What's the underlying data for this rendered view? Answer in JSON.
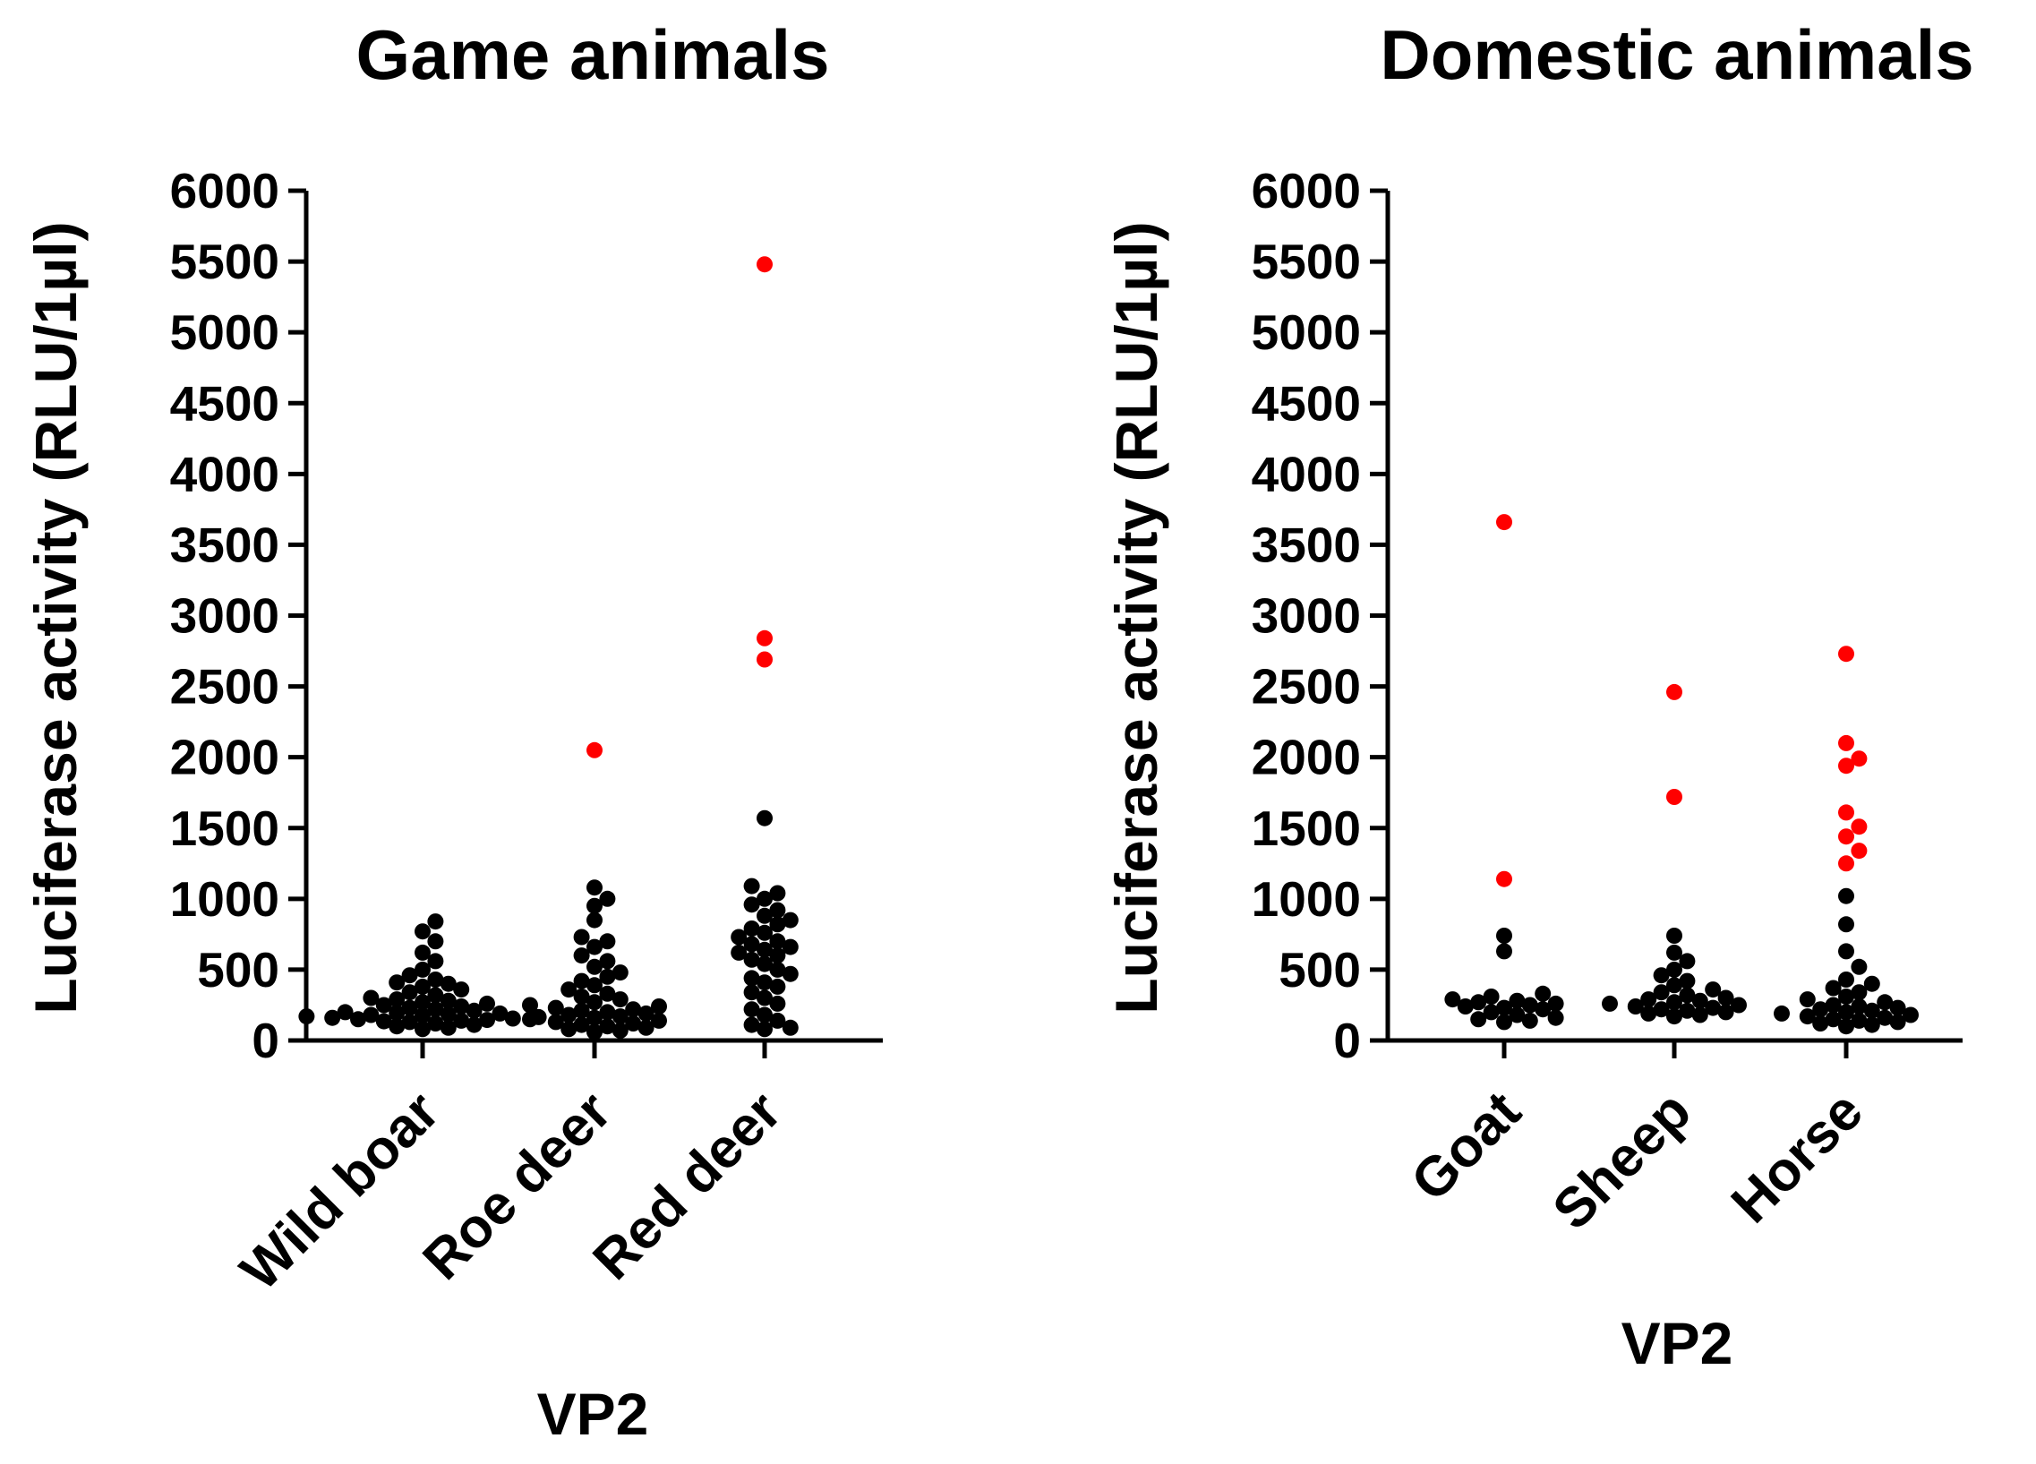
{
  "chart_data": [
    {
      "type": "scatter",
      "title": "Game animals",
      "xlabel": "VP2",
      "ylabel": "Luciferase activity (RLU/1µl)",
      "ylim": [
        0,
        6000
      ],
      "yticks": [
        0,
        500,
        1000,
        1500,
        2000,
        2500,
        3000,
        3500,
        4000,
        4500,
        5000,
        5500,
        6000
      ],
      "categories": [
        "Wild boar",
        "Roe deer",
        "Red deer"
      ],
      "colors": {
        "below_threshold": "#000000",
        "above_threshold": "#ff0000"
      },
      "series": [
        {
          "name": "Wild boar",
          "points": [
            {
              "y": 840,
              "color": "#000000"
            },
            {
              "y": 770,
              "color": "#000000"
            },
            {
              "y": 700,
              "color": "#000000"
            },
            {
              "y": 620,
              "color": "#000000"
            },
            {
              "y": 560,
              "color": "#000000"
            },
            {
              "y": 500,
              "color": "#000000"
            },
            {
              "y": 460,
              "color": "#000000"
            },
            {
              "y": 430,
              "color": "#000000"
            },
            {
              "y": 410,
              "color": "#000000"
            },
            {
              "y": 400,
              "color": "#000000"
            },
            {
              "y": 380,
              "color": "#000000"
            },
            {
              "y": 360,
              "color": "#000000"
            },
            {
              "y": 340,
              "color": "#000000"
            },
            {
              "y": 320,
              "color": "#000000"
            },
            {
              "y": 300,
              "color": "#000000"
            },
            {
              "y": 290,
              "color": "#000000"
            },
            {
              "y": 280,
              "color": "#000000"
            },
            {
              "y": 270,
              "color": "#000000"
            },
            {
              "y": 260,
              "color": "#000000"
            },
            {
              "y": 250,
              "color": "#000000"
            },
            {
              "y": 240,
              "color": "#000000"
            },
            {
              "y": 230,
              "color": "#000000"
            },
            {
              "y": 220,
              "color": "#000000"
            },
            {
              "y": 210,
              "color": "#000000"
            },
            {
              "y": 200,
              "color": "#000000"
            },
            {
              "y": 195,
              "color": "#000000"
            },
            {
              "y": 190,
              "color": "#000000"
            },
            {
              "y": 185,
              "color": "#000000"
            },
            {
              "y": 180,
              "color": "#000000"
            },
            {
              "y": 175,
              "color": "#000000"
            },
            {
              "y": 170,
              "color": "#000000"
            },
            {
              "y": 165,
              "color": "#000000"
            },
            {
              "y": 160,
              "color": "#000000"
            },
            {
              "y": 155,
              "color": "#000000"
            },
            {
              "y": 150,
              "color": "#000000"
            },
            {
              "y": 145,
              "color": "#000000"
            },
            {
              "y": 140,
              "color": "#000000"
            },
            {
              "y": 135,
              "color": "#000000"
            },
            {
              "y": 130,
              "color": "#000000"
            },
            {
              "y": 120,
              "color": "#000000"
            },
            {
              "y": 110,
              "color": "#000000"
            },
            {
              "y": 100,
              "color": "#000000"
            },
            {
              "y": 90,
              "color": "#000000"
            },
            {
              "y": 80,
              "color": "#000000"
            }
          ]
        },
        {
          "name": "Roe deer",
          "points": [
            {
              "y": 2050,
              "color": "#ff0000"
            },
            {
              "y": 1080,
              "color": "#000000"
            },
            {
              "y": 1000,
              "color": "#000000"
            },
            {
              "y": 950,
              "color": "#000000"
            },
            {
              "y": 850,
              "color": "#000000"
            },
            {
              "y": 730,
              "color": "#000000"
            },
            {
              "y": 700,
              "color": "#000000"
            },
            {
              "y": 660,
              "color": "#000000"
            },
            {
              "y": 600,
              "color": "#000000"
            },
            {
              "y": 560,
              "color": "#000000"
            },
            {
              "y": 520,
              "color": "#000000"
            },
            {
              "y": 480,
              "color": "#000000"
            },
            {
              "y": 450,
              "color": "#000000"
            },
            {
              "y": 420,
              "color": "#000000"
            },
            {
              "y": 390,
              "color": "#000000"
            },
            {
              "y": 360,
              "color": "#000000"
            },
            {
              "y": 330,
              "color": "#000000"
            },
            {
              "y": 310,
              "color": "#000000"
            },
            {
              "y": 290,
              "color": "#000000"
            },
            {
              "y": 270,
              "color": "#000000"
            },
            {
              "y": 250,
              "color": "#000000"
            },
            {
              "y": 240,
              "color": "#000000"
            },
            {
              "y": 230,
              "color": "#000000"
            },
            {
              "y": 220,
              "color": "#000000"
            },
            {
              "y": 210,
              "color": "#000000"
            },
            {
              "y": 200,
              "color": "#000000"
            },
            {
              "y": 190,
              "color": "#000000"
            },
            {
              "y": 180,
              "color": "#000000"
            },
            {
              "y": 170,
              "color": "#000000"
            },
            {
              "y": 160,
              "color": "#000000"
            },
            {
              "y": 150,
              "color": "#000000"
            },
            {
              "y": 140,
              "color": "#000000"
            },
            {
              "y": 130,
              "color": "#000000"
            },
            {
              "y": 120,
              "color": "#000000"
            },
            {
              "y": 110,
              "color": "#000000"
            },
            {
              "y": 100,
              "color": "#000000"
            },
            {
              "y": 90,
              "color": "#000000"
            },
            {
              "y": 80,
              "color": "#000000"
            },
            {
              "y": 70,
              "color": "#000000"
            },
            {
              "y": 60,
              "color": "#000000"
            }
          ]
        },
        {
          "name": "Red deer",
          "points": [
            {
              "y": 5480,
              "color": "#ff0000"
            },
            {
              "y": 2840,
              "color": "#ff0000"
            },
            {
              "y": 2690,
              "color": "#ff0000"
            },
            {
              "y": 1570,
              "color": "#000000"
            },
            {
              "y": 1090,
              "color": "#000000"
            },
            {
              "y": 1040,
              "color": "#000000"
            },
            {
              "y": 1000,
              "color": "#000000"
            },
            {
              "y": 960,
              "color": "#000000"
            },
            {
              "y": 920,
              "color": "#000000"
            },
            {
              "y": 880,
              "color": "#000000"
            },
            {
              "y": 850,
              "color": "#000000"
            },
            {
              "y": 820,
              "color": "#000000"
            },
            {
              "y": 790,
              "color": "#000000"
            },
            {
              "y": 760,
              "color": "#000000"
            },
            {
              "y": 730,
              "color": "#000000"
            },
            {
              "y": 700,
              "color": "#000000"
            },
            {
              "y": 680,
              "color": "#000000"
            },
            {
              "y": 660,
              "color": "#000000"
            },
            {
              "y": 640,
              "color": "#000000"
            },
            {
              "y": 620,
              "color": "#000000"
            },
            {
              "y": 600,
              "color": "#000000"
            },
            {
              "y": 570,
              "color": "#000000"
            },
            {
              "y": 540,
              "color": "#000000"
            },
            {
              "y": 500,
              "color": "#000000"
            },
            {
              "y": 470,
              "color": "#000000"
            },
            {
              "y": 440,
              "color": "#000000"
            },
            {
              "y": 410,
              "color": "#000000"
            },
            {
              "y": 380,
              "color": "#000000"
            },
            {
              "y": 340,
              "color": "#000000"
            },
            {
              "y": 300,
              "color": "#000000"
            },
            {
              "y": 260,
              "color": "#000000"
            },
            {
              "y": 220,
              "color": "#000000"
            },
            {
              "y": 180,
              "color": "#000000"
            },
            {
              "y": 140,
              "color": "#000000"
            },
            {
              "y": 110,
              "color": "#000000"
            },
            {
              "y": 90,
              "color": "#000000"
            },
            {
              "y": 80,
              "color": "#000000"
            }
          ]
        }
      ]
    },
    {
      "type": "scatter",
      "title": "Domestic animals",
      "xlabel": "VP2",
      "ylabel": "Luciferase activity (RLU/1µl)",
      "ylim": [
        0,
        6000
      ],
      "yticks": [
        0,
        500,
        1000,
        1500,
        2000,
        2500,
        3000,
        3500,
        4000,
        4500,
        5000,
        5500,
        6000
      ],
      "categories": [
        "Goat",
        "Sheep",
        "Horse"
      ],
      "colors": {
        "below_threshold": "#000000",
        "above_threshold": "#ff0000"
      },
      "series": [
        {
          "name": "Goat",
          "points": [
            {
              "y": 3660,
              "color": "#ff0000"
            },
            {
              "y": 1140,
              "color": "#ff0000"
            },
            {
              "y": 740,
              "color": "#000000"
            },
            {
              "y": 630,
              "color": "#000000"
            },
            {
              "y": 330,
              "color": "#000000"
            },
            {
              "y": 310,
              "color": "#000000"
            },
            {
              "y": 290,
              "color": "#000000"
            },
            {
              "y": 280,
              "color": "#000000"
            },
            {
              "y": 270,
              "color": "#000000"
            },
            {
              "y": 260,
              "color": "#000000"
            },
            {
              "y": 250,
              "color": "#000000"
            },
            {
              "y": 240,
              "color": "#000000"
            },
            {
              "y": 230,
              "color": "#000000"
            },
            {
              "y": 220,
              "color": "#000000"
            },
            {
              "y": 200,
              "color": "#000000"
            },
            {
              "y": 180,
              "color": "#000000"
            },
            {
              "y": 160,
              "color": "#000000"
            },
            {
              "y": 150,
              "color": "#000000"
            },
            {
              "y": 140,
              "color": "#000000"
            },
            {
              "y": 130,
              "color": "#000000"
            }
          ]
        },
        {
          "name": "Sheep",
          "points": [
            {
              "y": 2460,
              "color": "#ff0000"
            },
            {
              "y": 1720,
              "color": "#ff0000"
            },
            {
              "y": 740,
              "color": "#000000"
            },
            {
              "y": 620,
              "color": "#000000"
            },
            {
              "y": 560,
              "color": "#000000"
            },
            {
              "y": 500,
              "color": "#000000"
            },
            {
              "y": 460,
              "color": "#000000"
            },
            {
              "y": 420,
              "color": "#000000"
            },
            {
              "y": 390,
              "color": "#000000"
            },
            {
              "y": 360,
              "color": "#000000"
            },
            {
              "y": 340,
              "color": "#000000"
            },
            {
              "y": 320,
              "color": "#000000"
            },
            {
              "y": 300,
              "color": "#000000"
            },
            {
              "y": 290,
              "color": "#000000"
            },
            {
              "y": 280,
              "color": "#000000"
            },
            {
              "y": 270,
              "color": "#000000"
            },
            {
              "y": 260,
              "color": "#000000"
            },
            {
              "y": 250,
              "color": "#000000"
            },
            {
              "y": 240,
              "color": "#000000"
            },
            {
              "y": 230,
              "color": "#000000"
            },
            {
              "y": 220,
              "color": "#000000"
            },
            {
              "y": 210,
              "color": "#000000"
            },
            {
              "y": 200,
              "color": "#000000"
            },
            {
              "y": 190,
              "color": "#000000"
            },
            {
              "y": 180,
              "color": "#000000"
            },
            {
              "y": 170,
              "color": "#000000"
            }
          ]
        },
        {
          "name": "Horse",
          "points": [
            {
              "y": 2730,
              "color": "#ff0000"
            },
            {
              "y": 2100,
              "color": "#ff0000"
            },
            {
              "y": 1990,
              "color": "#ff0000"
            },
            {
              "y": 1940,
              "color": "#ff0000"
            },
            {
              "y": 1610,
              "color": "#ff0000"
            },
            {
              "y": 1510,
              "color": "#ff0000"
            },
            {
              "y": 1440,
              "color": "#ff0000"
            },
            {
              "y": 1340,
              "color": "#ff0000"
            },
            {
              "y": 1250,
              "color": "#ff0000"
            },
            {
              "y": 1020,
              "color": "#000000"
            },
            {
              "y": 820,
              "color": "#000000"
            },
            {
              "y": 630,
              "color": "#000000"
            },
            {
              "y": 520,
              "color": "#000000"
            },
            {
              "y": 430,
              "color": "#000000"
            },
            {
              "y": 400,
              "color": "#000000"
            },
            {
              "y": 370,
              "color": "#000000"
            },
            {
              "y": 340,
              "color": "#000000"
            },
            {
              "y": 310,
              "color": "#000000"
            },
            {
              "y": 290,
              "color": "#000000"
            },
            {
              "y": 270,
              "color": "#000000"
            },
            {
              "y": 250,
              "color": "#000000"
            },
            {
              "y": 240,
              "color": "#000000"
            },
            {
              "y": 230,
              "color": "#000000"
            },
            {
              "y": 220,
              "color": "#000000"
            },
            {
              "y": 210,
              "color": "#000000"
            },
            {
              "y": 200,
              "color": "#000000"
            },
            {
              "y": 190,
              "color": "#000000"
            },
            {
              "y": 180,
              "color": "#000000"
            },
            {
              "y": 170,
              "color": "#000000"
            },
            {
              "y": 160,
              "color": "#000000"
            },
            {
              "y": 150,
              "color": "#000000"
            },
            {
              "y": 140,
              "color": "#000000"
            },
            {
              "y": 130,
              "color": "#000000"
            },
            {
              "y": 120,
              "color": "#000000"
            },
            {
              "y": 110,
              "color": "#000000"
            },
            {
              "y": 100,
              "color": "#000000"
            }
          ]
        }
      ]
    }
  ]
}
